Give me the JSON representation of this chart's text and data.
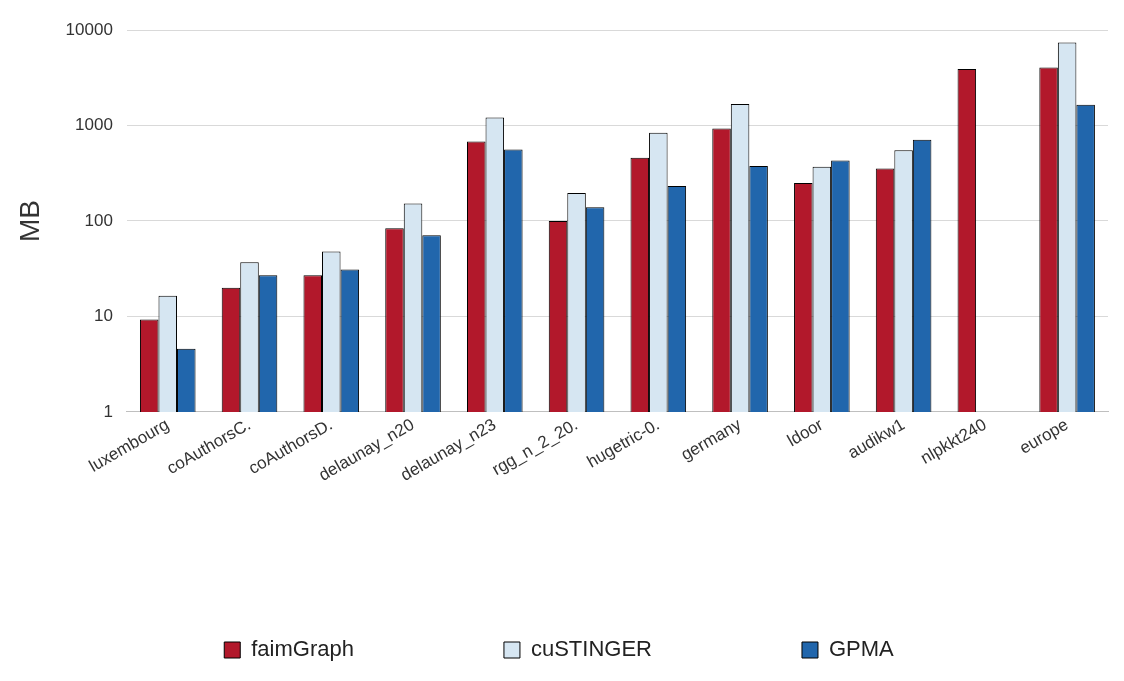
{
  "chart_data": {
    "type": "bar",
    "ylabel": "MB",
    "log": true,
    "grid": "y",
    "legend": "bottom",
    "categories": [
      "luxembourg",
      "coAuthorsC.",
      "coAuthorsD.",
      "delaunay_n20",
      "delaunay_n23",
      "rgg_n_2_20.",
      "hugetric-0.",
      "germany",
      "ldoor",
      "audikw1",
      "nlpkkt240",
      "europe"
    ],
    "ylim": [
      1,
      10000
    ],
    "yticks": [
      1,
      10,
      100,
      1000,
      10000
    ],
    "series": [
      {
        "name": "faimGraph",
        "color": "#b2182b",
        "values": [
          9.3,
          20,
          27,
          84,
          680,
          100,
          460,
          930,
          250,
          355,
          3900,
          4050
        ]
      },
      {
        "name": "cuSTINGER",
        "color": "#d6e6f2",
        "values": [
          16.5,
          37,
          48,
          152,
          1210,
          196,
          840,
          1680,
          370,
          550,
          null,
          7400
        ]
      },
      {
        "name": "GPMA",
        "color": "#2166ac",
        "values": [
          4.6,
          27,
          31,
          71,
          560,
          139,
          233,
          376,
          430,
          710,
          null,
          1650
        ]
      }
    ]
  }
}
